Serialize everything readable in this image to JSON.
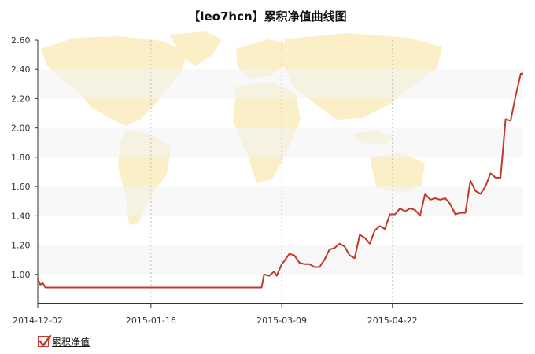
{
  "chart_data": {
    "type": "line",
    "title": "【leo7hcn】累积净值曲线图",
    "xlabel": "",
    "ylabel": "",
    "ylim": [
      0.8,
      2.6
    ],
    "yticks": [
      "1.00",
      "1.20",
      "1.40",
      "1.60",
      "1.80",
      "2.00",
      "2.20",
      "2.40",
      "2.60"
    ],
    "xticks": [
      "2014-12-02",
      "2015-01-16",
      "2015-03-09",
      "2015-04-22"
    ],
    "grid": "alternating horizontal bands, dotted vertical lines",
    "legend_position": "bottom-left",
    "background": "faded world map",
    "series": [
      {
        "name": "累积净值",
        "color": "#c0392b",
        "x": [
          "2014-12-02",
          "2014-12-03",
          "2014-12-04",
          "2014-12-05",
          "2014-12-06",
          "2015-02-27",
          "2015-02-28",
          "2015-03-01",
          "2015-03-02",
          "2015-03-04",
          "2015-03-06",
          "2015-03-07",
          "2015-03-09",
          "2015-03-10",
          "2015-03-12",
          "2015-03-14",
          "2015-03-16",
          "2015-03-18",
          "2015-03-20",
          "2015-03-22",
          "2015-03-24",
          "2015-03-26",
          "2015-03-28",
          "2015-03-30",
          "2015-04-01",
          "2015-04-03",
          "2015-04-05",
          "2015-04-07",
          "2015-04-09",
          "2015-04-11",
          "2015-04-13",
          "2015-04-15",
          "2015-04-17",
          "2015-04-19",
          "2015-04-21",
          "2015-04-23",
          "2015-04-25",
          "2015-04-27",
          "2015-04-29",
          "2015-05-01",
          "2015-05-03",
          "2015-05-05",
          "2015-05-07",
          "2015-05-09",
          "2015-05-11",
          "2015-05-13",
          "2015-05-15",
          "2015-05-17",
          "2015-05-19",
          "2015-05-21",
          "2015-05-23",
          "2015-05-25",
          "2015-05-27",
          "2015-05-29",
          "2015-05-31",
          "2015-06-02",
          "2015-06-04",
          "2015-06-06",
          "2015-06-08",
          "2015-06-10",
          "2015-06-12",
          "2015-06-13"
        ],
        "values": [
          0.97,
          0.93,
          0.94,
          0.91,
          0.91,
          0.91,
          0.91,
          0.91,
          1.0,
          0.99,
          1.02,
          0.99,
          1.07,
          1.09,
          1.14,
          1.13,
          1.08,
          1.07,
          1.07,
          1.05,
          1.05,
          1.1,
          1.17,
          1.18,
          1.21,
          1.19,
          1.13,
          1.11,
          1.27,
          1.25,
          1.21,
          1.3,
          1.33,
          1.31,
          1.41,
          1.41,
          1.45,
          1.43,
          1.45,
          1.44,
          1.4,
          1.55,
          1.51,
          1.52,
          1.51,
          1.52,
          1.48,
          1.41,
          1.42,
          1.42,
          1.64,
          1.57,
          1.55,
          1.6,
          1.69,
          1.66,
          1.66,
          2.06,
          2.05,
          2.22,
          2.37,
          2.37
        ]
      }
    ]
  }
}
